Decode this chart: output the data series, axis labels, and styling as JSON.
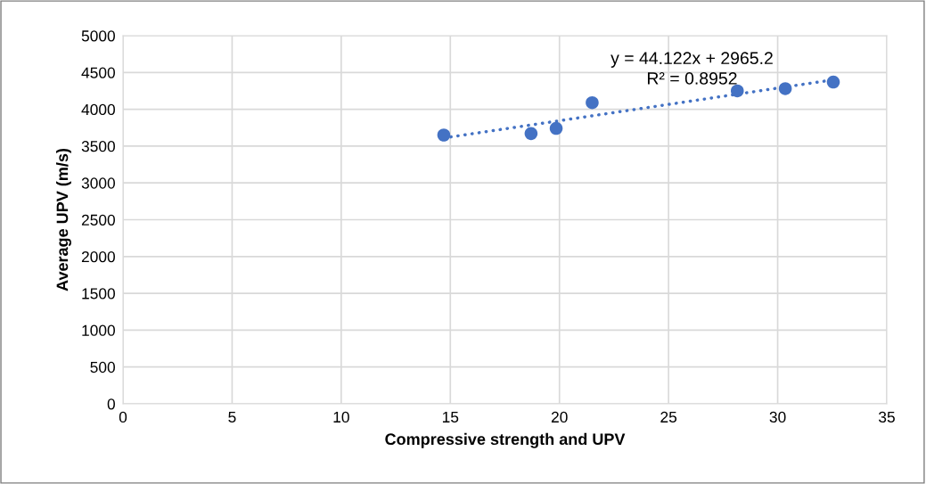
{
  "chart_data": {
    "type": "scatter",
    "xlabel": "Compressive strength and UPV",
    "ylabel": "Average UPV (m/s)",
    "series": [
      {
        "color": "#4472c4",
        "marker": "circle",
        "x": [
          14.7,
          18.7,
          19.85,
          21.5,
          28.15,
          30.35,
          32.55
        ],
        "values": [
          3650,
          3670,
          3740,
          4090,
          4250,
          4280,
          4370
        ]
      },
      {
        "type": "line",
        "color": "#4472c4",
        "line_style": "dotted",
        "marker": "none",
        "x": [
          14.7,
          32.55
        ],
        "values": [
          3610,
          4400
        ]
      }
    ],
    "annotations": [
      "y = 44.122x + 2965.2",
      "R² = 0.8952"
    ],
    "xlim": [
      0,
      35
    ],
    "xticks": [
      0,
      5,
      10,
      15,
      20,
      25,
      30,
      35
    ],
    "ylim": [
      0,
      5000
    ],
    "yticks": [
      0,
      500,
      1000,
      1500,
      2000,
      2500,
      3000,
      3500,
      4000,
      4500,
      5000
    ],
    "grid": true,
    "legend": false
  }
}
